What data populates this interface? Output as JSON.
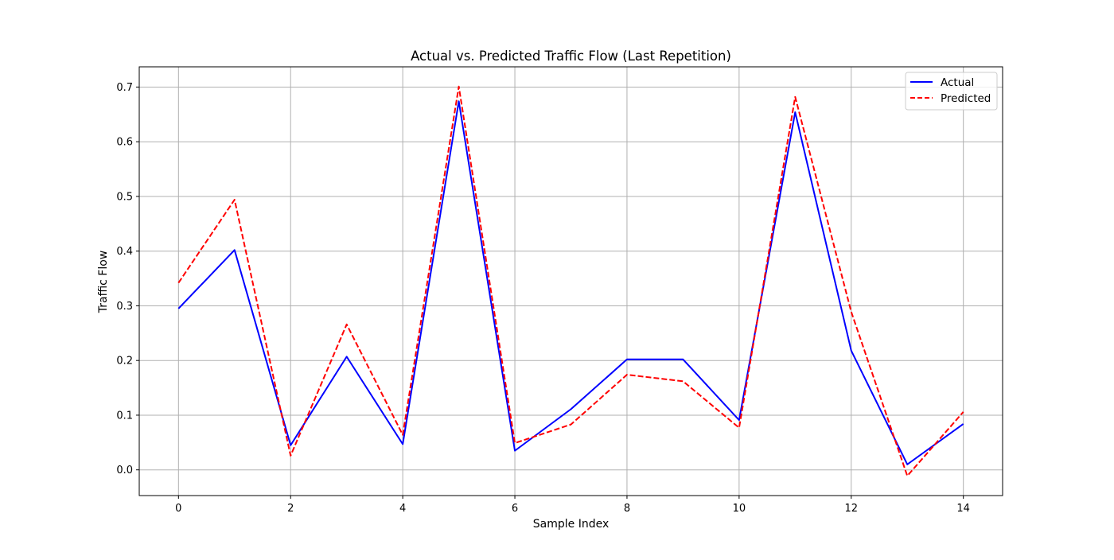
{
  "chart_data": {
    "type": "line",
    "title": "Actual vs. Predicted Traffic Flow (Last Repetition)",
    "xlabel": "Sample Index",
    "ylabel": "Traffic Flow",
    "xlim": [
      -0.7,
      14.7
    ],
    "ylim": [
      -0.047,
      0.737
    ],
    "x_ticks": [
      "0",
      "2",
      "4",
      "6",
      "8",
      "10",
      "12",
      "14"
    ],
    "y_ticks": [
      "0.0",
      "0.1",
      "0.2",
      "0.3",
      "0.4",
      "0.5",
      "0.6",
      "0.7"
    ],
    "grid": true,
    "legend_position": "upper-right",
    "x": [
      0,
      1,
      2,
      3,
      4,
      5,
      6,
      7,
      8,
      9,
      10,
      11,
      12,
      13,
      14
    ],
    "series": [
      {
        "name": "Actual",
        "color": "#0000ff",
        "line_style": "solid",
        "values": [
          0.295,
          0.402,
          0.045,
          0.207,
          0.047,
          0.674,
          0.035,
          0.111,
          0.202,
          0.202,
          0.091,
          0.654,
          0.218,
          0.01,
          0.084
        ]
      },
      {
        "name": "Predicted",
        "color": "#ff0000",
        "line_style": "dashed",
        "values": [
          0.342,
          0.494,
          0.026,
          0.266,
          0.064,
          0.701,
          0.049,
          0.083,
          0.174,
          0.162,
          0.077,
          0.682,
          0.289,
          -0.011,
          0.106
        ]
      }
    ]
  }
}
